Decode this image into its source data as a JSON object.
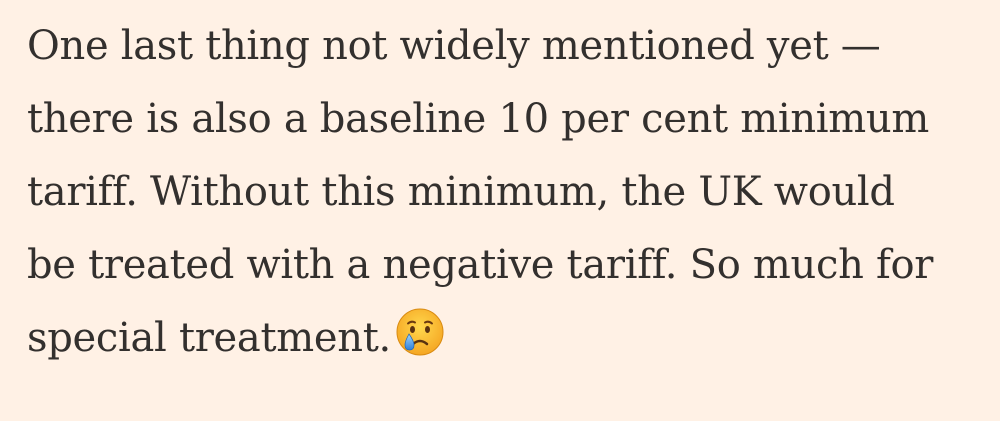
{
  "paragraph": {
    "lines": [
      "One last thing not widely mentioned yet —",
      "there is also a baseline 10 per cent minimum",
      "tariff. Without this minimum, the UK would",
      "be treated with a negative tariff. So much for",
      "special treatment."
    ],
    "emoji": "crying-face-icon"
  },
  "colors": {
    "background": "#fff1e5",
    "text": "#33302e"
  }
}
